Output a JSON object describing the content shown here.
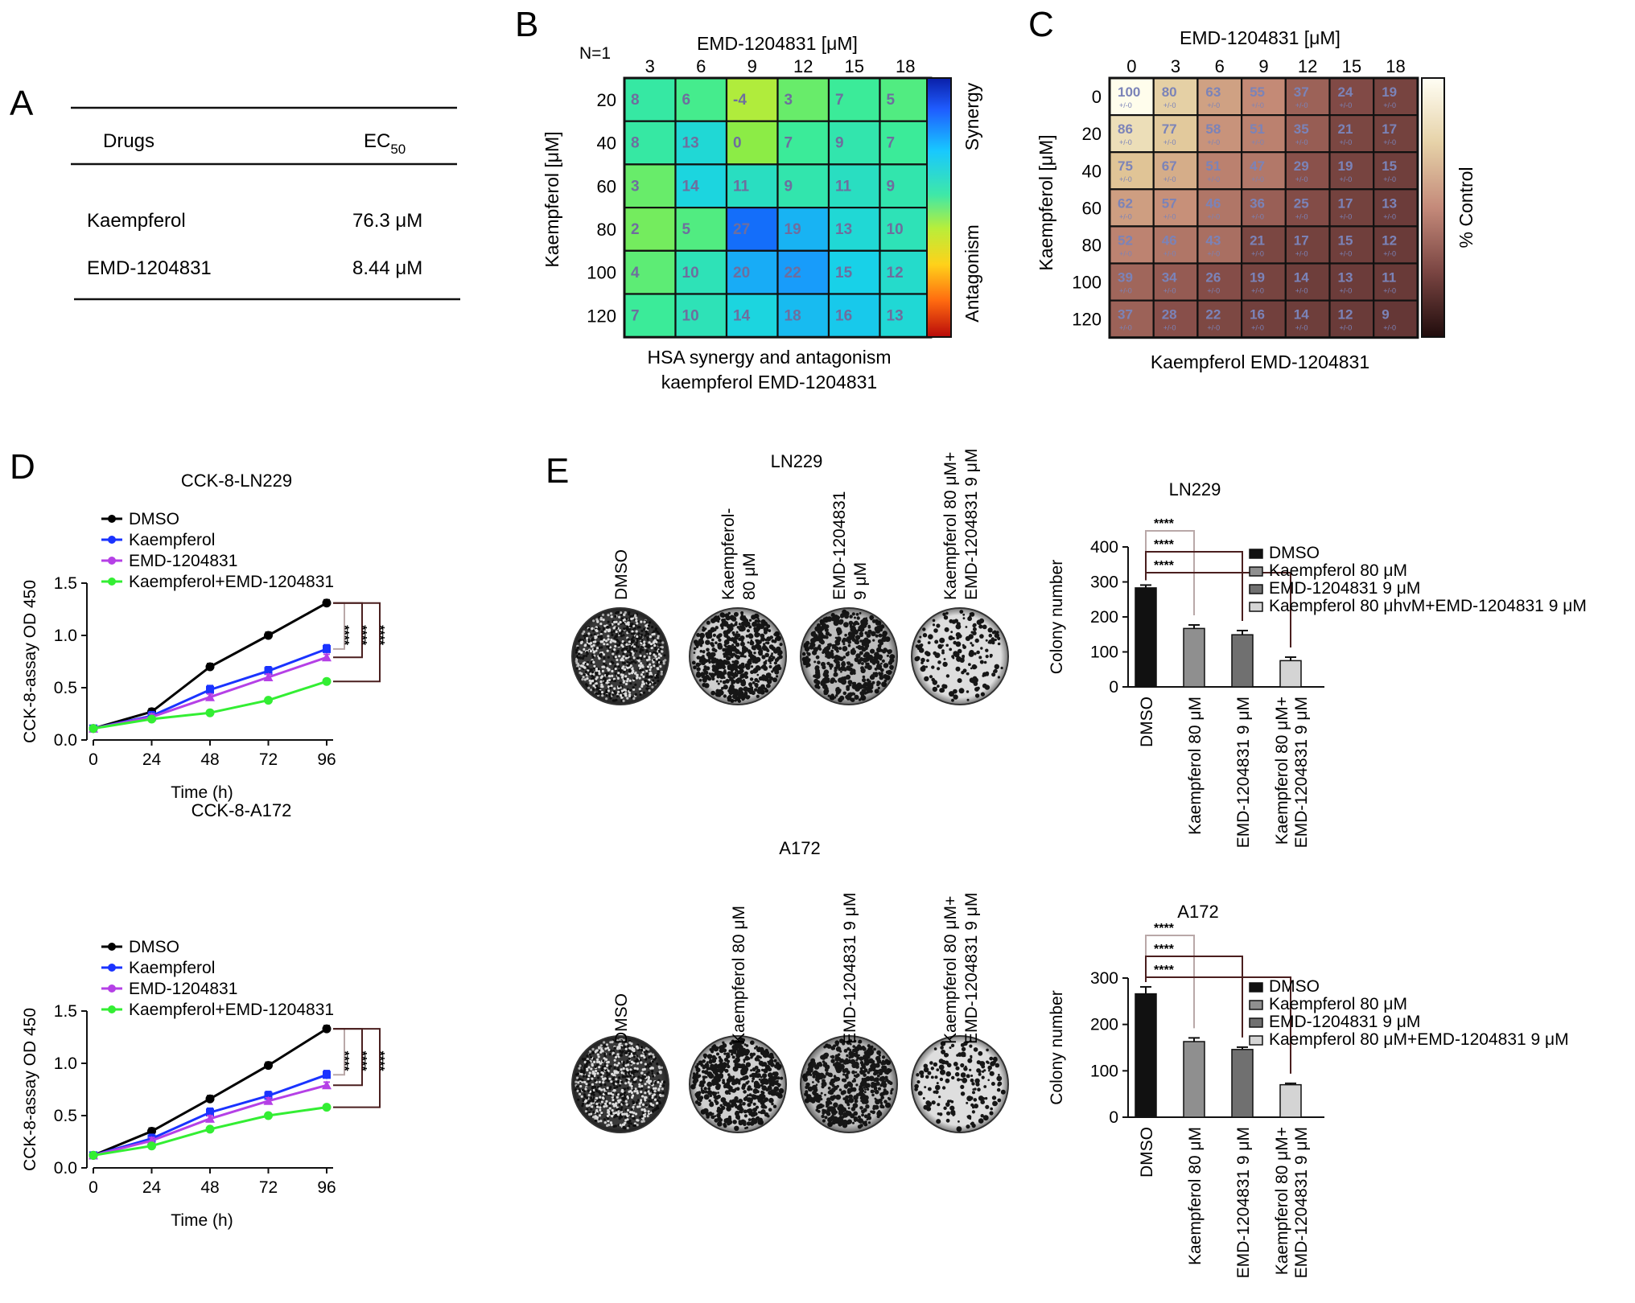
{
  "panel_letters": [
    "A",
    "B",
    "C",
    "D",
    "E"
  ],
  "panel_a": {
    "headers": [
      "Drugs",
      "EC",
      "50"
    ],
    "rows": [
      {
        "drug": "Kaempferol",
        "ec50": "76.3 μM"
      },
      {
        "drug": "EMD-1204831",
        "ec50": "8.44 μM"
      }
    ]
  },
  "colors": {
    "dmso": "#000000",
    "kaempferol": "#1a33ff",
    "emd": "#b540e6",
    "combo": "#33ee33",
    "cell_text_b": "#6e6e9e",
    "cell_text_c": "#7b83b8",
    "grid": "#111111"
  },
  "chart_data": [
    {
      "type": "heatmap",
      "panel": "B",
      "top_left_label": "N=1",
      "xlabel": "EMD-1204831 [μM]",
      "ylabel": "Kaempferol [μM]",
      "x": [
        "3",
        "6",
        "9",
        "12",
        "15",
        "18"
      ],
      "y": [
        "20",
        "40",
        "60",
        "80",
        "100",
        "120"
      ],
      "values": [
        [
          8,
          6,
          -4,
          3,
          7,
          5
        ],
        [
          8,
          13,
          0,
          7,
          9,
          7
        ],
        [
          3,
          14,
          11,
          9,
          11,
          9
        ],
        [
          2,
          5,
          27,
          19,
          13,
          10
        ],
        [
          4,
          10,
          20,
          22,
          15,
          12
        ],
        [
          7,
          10,
          14,
          18,
          16,
          13
        ]
      ],
      "colorbar_labels": [
        "Synergy",
        "Antagonism"
      ],
      "caption_lines": [
        "HSA synergy and antagonism",
        "kaempferol EMD-1204831"
      ]
    },
    {
      "type": "heatmap",
      "panel": "C",
      "xlabel": "EMD-1204831 [μM]",
      "ylabel": "Kaempferol [μM]",
      "x": [
        "0",
        "3",
        "6",
        "9",
        "12",
        "15",
        "18"
      ],
      "y": [
        "0",
        "20",
        "40",
        "60",
        "80",
        "100",
        "120"
      ],
      "values": [
        [
          100,
          80,
          63,
          55,
          37,
          24,
          19
        ],
        [
          86,
          77,
          58,
          51,
          35,
          21,
          17
        ],
        [
          75,
          67,
          51,
          47,
          29,
          19,
          15
        ],
        [
          62,
          57,
          46,
          36,
          25,
          17,
          13
        ],
        [
          52,
          46,
          43,
          21,
          17,
          15,
          12
        ],
        [
          39,
          34,
          26,
          19,
          14,
          13,
          11
        ],
        [
          37,
          28,
          22,
          16,
          14,
          12,
          9
        ]
      ],
      "cell_sub_label": "+/-0",
      "colorbar_label": "% Control",
      "caption": "Kaempferol EMD-1204831"
    },
    {
      "type": "line",
      "panel": "D",
      "title": "CCK-8-LN229",
      "xlabel": "Time (h)",
      "ylabel": "CCK-8-assay OD 450",
      "x": [
        0,
        24,
        48,
        72,
        96
      ],
      "xlim": [
        0,
        96
      ],
      "ylim": [
        0,
        1.5
      ],
      "yticks": [
        "0.0",
        "0.5",
        "1.0",
        "1.5"
      ],
      "series": [
        {
          "name": "DMSO",
          "values": [
            0.11,
            0.27,
            0.7,
            1.0,
            1.31
          ]
        },
        {
          "name": "Kaempferol",
          "values": [
            0.11,
            0.23,
            0.48,
            0.66,
            0.87
          ]
        },
        {
          "name": "EMD-1204831",
          "values": [
            0.11,
            0.22,
            0.41,
            0.6,
            0.79
          ]
        },
        {
          "name": "Kaempferol+EMD-1204831",
          "values": [
            0.11,
            0.2,
            0.26,
            0.38,
            0.56
          ]
        }
      ],
      "significance": [
        "****",
        "****",
        "****"
      ]
    },
    {
      "type": "line",
      "panel": "D",
      "title": "CCK-8-A172",
      "xlabel": "Time (h)",
      "ylabel": "CCK-8-assay OD 450",
      "x": [
        0,
        24,
        48,
        72,
        96
      ],
      "xlim": [
        0,
        96
      ],
      "ylim": [
        0,
        1.5
      ],
      "yticks": [
        "0.0",
        "0.5",
        "1.0",
        "1.5"
      ],
      "series": [
        {
          "name": "DMSO",
          "values": [
            0.12,
            0.35,
            0.66,
            0.98,
            1.33
          ]
        },
        {
          "name": "Kaempferol",
          "values": [
            0.12,
            0.28,
            0.53,
            0.69,
            0.89
          ]
        },
        {
          "name": "EMD-1204831",
          "values": [
            0.12,
            0.26,
            0.47,
            0.64,
            0.79
          ]
        },
        {
          "name": "Kaempferol+EMD-1204831",
          "values": [
            0.12,
            0.21,
            0.37,
            0.5,
            0.58
          ]
        }
      ],
      "significance": [
        "****",
        "****",
        "****"
      ]
    },
    {
      "type": "bar",
      "panel": "E",
      "title": "LN229",
      "ylabel": "Colony number",
      "ylim": [
        0,
        400
      ],
      "yticks": [
        "0",
        "100",
        "200",
        "300",
        "400"
      ],
      "categories": [
        "DMSO",
        "Kaempferol 80 μM",
        "EMD-1204831 9 μM",
        "Kaempferol 80 μM+ EMD-1204831 9 μM"
      ],
      "values": [
        283,
        167,
        149,
        75
      ],
      "errors": [
        8,
        10,
        12,
        10
      ],
      "legend": [
        "DMSO",
        "Kaempferol 80 μM",
        "EMD-1204831 9 μM",
        "Kaempferol 80 μhvM+EMD-1204831 9 μM"
      ],
      "significance": [
        "****",
        "****",
        "****"
      ]
    },
    {
      "type": "bar",
      "panel": "E",
      "title": "A172",
      "ylabel": "Colony number",
      "ylim": [
        0,
        300
      ],
      "yticks": [
        "0",
        "100",
        "200",
        "300"
      ],
      "categories": [
        "DMSO",
        "Kaempferol 80 μM",
        "EMD-1204831 9 μM",
        "Kaempferol 80 μM+ EMD-1204831 9 μM"
      ],
      "values": [
        266,
        163,
        146,
        70
      ],
      "errors": [
        15,
        8,
        5,
        3
      ],
      "legend": [
        "DMSO",
        "Kaempferol 80 μM",
        "EMD-1204831 9 μM",
        "Kaempferol 80 μM+EMD-1204831 9 μM"
      ],
      "significance": [
        "****",
        "****",
        "****"
      ]
    }
  ],
  "dishes": {
    "ln229": {
      "title": "LN229",
      "labels": [
        [
          "DMSO"
        ],
        [
          "Kaempferol-",
          "80 μM"
        ],
        [
          "EMD-1204831",
          "9 μM"
        ],
        [
          "Kaempferol 80 μM+",
          "EMD-1204831 9 μM"
        ]
      ]
    },
    "a172": {
      "title": "A172",
      "labels": [
        [
          "DMSO"
        ],
        [
          "Kaempferol 80 μM"
        ],
        [
          "EMD-1204831 9 μM"
        ],
        [
          "Kaempferol 80 μM+",
          "EMD-1204831 9 μM"
        ]
      ]
    }
  }
}
